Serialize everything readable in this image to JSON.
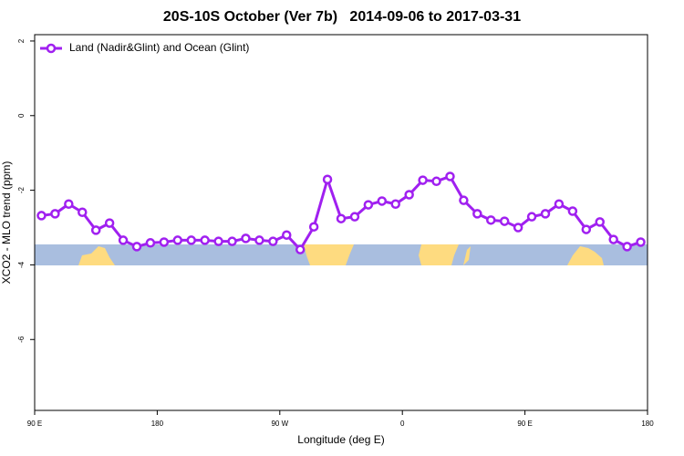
{
  "chart_data": {
    "type": "line",
    "title": "20S-10S October (Ver 7b)   2014-09-06 to 2017-03-31",
    "x_label": "Longitude (deg E)",
    "y_label": "XCO2 - MLO trend (ppm)",
    "x": [
      95,
      105,
      115,
      125,
      135,
      145,
      155,
      165,
      175,
      185,
      195,
      205,
      215,
      225,
      235,
      245,
      255,
      265,
      275,
      285,
      295,
      305,
      315,
      325,
      335,
      345,
      355,
      365,
      375,
      385,
      395,
      405,
      415,
      425,
      435,
      445,
      455,
      465,
      475,
      485,
      495,
      505,
      515,
      525,
      535
    ],
    "series": [
      {
        "name": "Land (Nadir&Glint) and Ocean (Glint)",
        "color": "#a020f0",
        "values": [
          -2.68,
          -2.63,
          -2.37,
          -2.59,
          -3.07,
          -2.88,
          -3.34,
          -3.51,
          -3.41,
          -3.39,
          -3.34,
          -3.34,
          -3.34,
          -3.37,
          -3.37,
          -3.29,
          -3.34,
          -3.37,
          -3.2,
          -3.59,
          -2.98,
          -1.71,
          -2.76,
          -2.71,
          -2.39,
          -2.29,
          -2.37,
          -2.12,
          -1.73,
          -1.76,
          -1.63,
          -2.27,
          -2.63,
          -2.8,
          -2.83,
          -3.0,
          -2.71,
          -2.63,
          -2.37,
          -2.56,
          -3.05,
          -2.85,
          -3.32,
          -3.51,
          -3.39
        ]
      }
    ],
    "xlim": [
      90,
      540
    ],
    "xticks": [
      {
        "value": 90,
        "label": "90 E"
      },
      {
        "value": 180,
        "label": "180"
      },
      {
        "value": 270,
        "label": "90 W"
      },
      {
        "value": 360,
        "label": "0"
      },
      {
        "value": 450,
        "label": "90 E"
      },
      {
        "value": 540,
        "label": "180"
      }
    ],
    "ylim": [
      -7.9,
      2.17
    ],
    "yticks": [
      2,
      0,
      -2,
      -4,
      -6
    ],
    "legend": "top-left"
  }
}
